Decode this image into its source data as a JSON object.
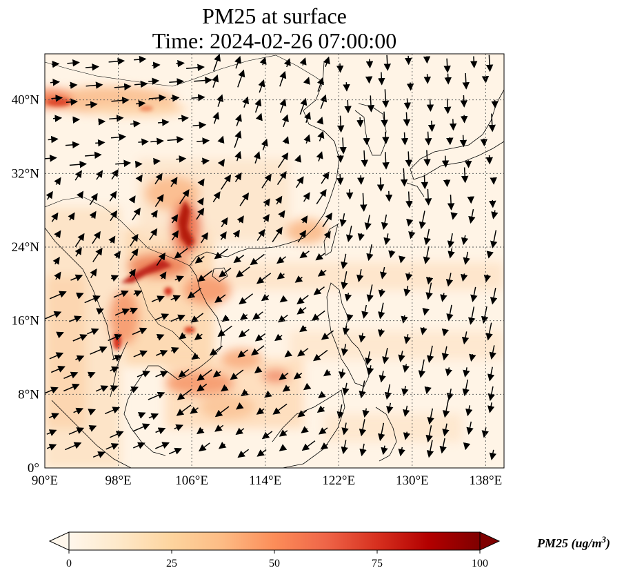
{
  "title": {
    "line1": "PM25 at surface",
    "line2": "Time: 2024-02-26 07:00:00"
  },
  "map": {
    "extent_lon": [
      90,
      140
    ],
    "extent_lat": [
      0,
      45
    ],
    "lon_ticks": [
      "90°E",
      "98°E",
      "106°E",
      "114°E",
      "122°E",
      "130°E",
      "138°E"
    ],
    "lat_ticks": [
      "0°",
      "8°N",
      "16°N",
      "24°N",
      "32°N",
      "40°N"
    ],
    "gridlines": true,
    "background": "#fff5e8"
  },
  "colorbar": {
    "label": "PM25 (ug/m^3)",
    "ticks": [
      "0",
      "25",
      "50",
      "75",
      "100"
    ],
    "min": 0,
    "max": 100,
    "extend": "both",
    "colormap": "OrRd",
    "colors": [
      "#fff7ec",
      "#fee8c8",
      "#fdd49e",
      "#fdbb84",
      "#fc8d59",
      "#ef6548",
      "#d7301f",
      "#b30000",
      "#7f0000"
    ]
  }
}
